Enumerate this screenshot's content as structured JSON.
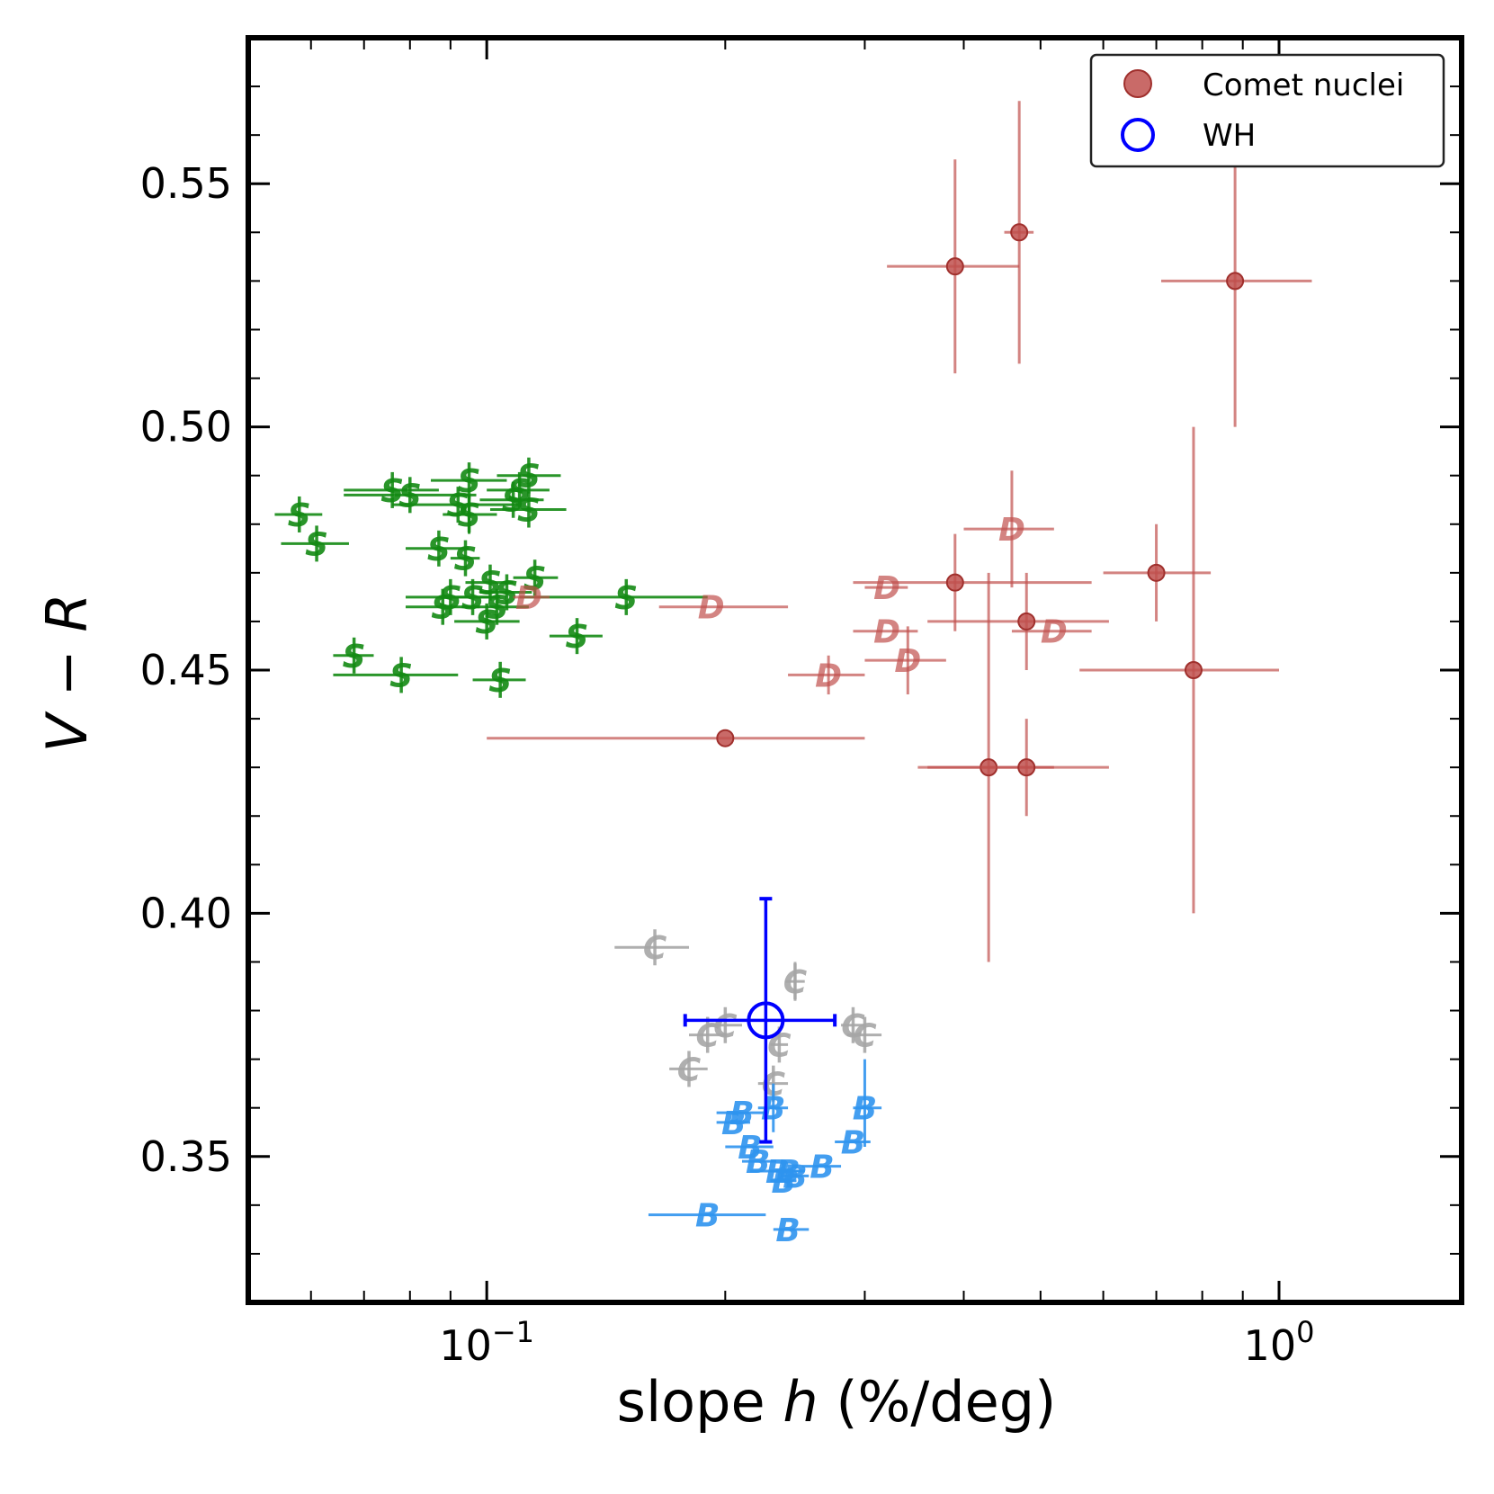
{
  "chart_data": {
    "type": "scatter",
    "xlabel_prefix": "slope ",
    "xlabel_var": "h",
    "xlabel_suffix": " (%/deg)",
    "ylabel_a": "V",
    "ylabel_sep": " − ",
    "ylabel_b": "R",
    "x_scale": "log",
    "xlim": [
      0.05,
      1.7
    ],
    "ylim": [
      0.32,
      0.58
    ],
    "x_tick_labels": [
      {
        "value": 0.1,
        "base": "10",
        "exp": "−1"
      },
      {
        "value": 1.0,
        "base": "10",
        "exp": "0"
      }
    ],
    "y_ticks": [
      0.35,
      0.4,
      0.45,
      0.5,
      0.55
    ],
    "y_tick_labels": [
      "0.35",
      "0.40",
      "0.45",
      "0.50",
      "0.55"
    ],
    "grid": false,
    "legend_position": "top-right",
    "legend": [
      {
        "label": "Comet nuclei",
        "marker": "filled-circle",
        "color": "#c0504d"
      },
      {
        "label": "WH",
        "marker": "open-circle",
        "color": "#0000ff"
      }
    ],
    "series": [
      {
        "name": "Comet nuclei",
        "marker": "filled-circle",
        "color": "#c0504d",
        "points": [
          {
            "x": 0.39,
            "y": 0.533,
            "xerr": [
              0.32,
              0.47
            ],
            "yerr": [
              0.511,
              0.555
            ]
          },
          {
            "x": 0.47,
            "y": 0.54,
            "xerr": [
              0.45,
              0.49
            ],
            "yerr": [
              0.513,
              0.567
            ]
          },
          {
            "x": 0.88,
            "y": 0.53,
            "xerr": [
              0.71,
              1.1
            ],
            "yerr": [
              0.5,
              0.56
            ]
          },
          {
            "x": 0.39,
            "y": 0.468,
            "xerr": [
              0.29,
              0.58
            ],
            "yerr": [
              0.458,
              0.478
            ]
          },
          {
            "x": 0.7,
            "y": 0.47,
            "xerr": [
              0.6,
              0.82
            ],
            "yerr": [
              0.46,
              0.48
            ]
          },
          {
            "x": 0.48,
            "y": 0.46,
            "xerr": [
              0.36,
              0.61
            ],
            "yerr": [
              0.45,
              0.47
            ]
          },
          {
            "x": 0.78,
            "y": 0.45,
            "xerr": [
              0.56,
              1.0
            ],
            "yerr": [
              0.4,
              0.5
            ]
          },
          {
            "x": 0.2,
            "y": 0.436,
            "xerr": [
              0.1,
              0.3
            ],
            "yerr": [
              0.436,
              0.436
            ]
          },
          {
            "x": 0.43,
            "y": 0.43,
            "xerr": [
              0.35,
              0.52
            ],
            "yerr": [
              0.39,
              0.47
            ]
          },
          {
            "x": 0.48,
            "y": 0.43,
            "xerr": [
              0.36,
              0.61
            ],
            "yerr": [
              0.42,
              0.44
            ]
          }
        ]
      },
      {
        "name": "WH",
        "marker": "open-circle",
        "color": "#0000ff",
        "points": [
          {
            "x": 0.225,
            "y": 0.378,
            "xerr": [
              0.178,
              0.275
            ],
            "yerr": [
              0.353,
              0.403
            ]
          }
        ]
      },
      {
        "marker": "letter",
        "letter": "S",
        "color": "#138a13",
        "points": [
          {
            "x": 0.058,
            "y": 0.482,
            "xerr": [
              0.054,
              0.062
            ],
            "yerr": [
              0.482,
              0.482
            ]
          },
          {
            "x": 0.061,
            "y": 0.476,
            "xerr": [
              0.055,
              0.067
            ],
            "yerr": [
              0.476,
              0.476
            ]
          },
          {
            "x": 0.076,
            "y": 0.487,
            "xerr": [
              0.066,
              0.087
            ],
            "yerr": [
              0.487,
              0.487
            ]
          },
          {
            "x": 0.08,
            "y": 0.486,
            "xerr": [
              0.066,
              0.097
            ],
            "yerr": [
              0.486,
              0.486
            ]
          },
          {
            "x": 0.095,
            "y": 0.489,
            "xerr": [
              0.085,
              0.106
            ],
            "yerr": [
              0.489,
              0.489
            ]
          },
          {
            "x": 0.092,
            "y": 0.484,
            "xerr": [
              0.076,
              0.11
            ],
            "yerr": [
              0.484,
              0.484
            ]
          },
          {
            "x": 0.113,
            "y": 0.49,
            "xerr": [
              0.103,
              0.124
            ],
            "yerr": [
              0.49,
              0.49
            ]
          },
          {
            "x": 0.11,
            "y": 0.487,
            "xerr": [
              0.1,
              0.12
            ],
            "yerr": [
              0.487,
              0.487
            ]
          },
          {
            "x": 0.108,
            "y": 0.485,
            "xerr": [
              0.098,
              0.118
            ],
            "yerr": [
              0.485,
              0.485
            ]
          },
          {
            "x": 0.113,
            "y": 0.483,
            "xerr": [
              0.101,
              0.126
            ],
            "yerr": [
              0.483,
              0.483
            ]
          },
          {
            "x": 0.095,
            "y": 0.482,
            "xerr": [
              0.088,
              0.103
            ],
            "yerr": [
              0.478,
              0.486
            ]
          },
          {
            "x": 0.087,
            "y": 0.475,
            "xerr": [
              0.079,
              0.095
            ],
            "yerr": [
              0.475,
              0.475
            ]
          },
          {
            "x": 0.094,
            "y": 0.473,
            "xerr": [
              0.09,
              0.098
            ],
            "yerr": [
              0.473,
              0.473
            ]
          },
          {
            "x": 0.101,
            "y": 0.468,
            "xerr": [
              0.094,
              0.108
            ],
            "yerr": [
              0.468,
              0.468
            ]
          },
          {
            "x": 0.106,
            "y": 0.466,
            "xerr": [
              0.098,
              0.114
            ],
            "yerr": [
              0.466,
              0.466
            ]
          },
          {
            "x": 0.115,
            "y": 0.469,
            "xerr": [
              0.108,
              0.123
            ],
            "yerr": [
              0.469,
              0.469
            ]
          },
          {
            "x": 0.09,
            "y": 0.465,
            "xerr": [
              0.079,
              0.102
            ],
            "yerr": [
              0.465,
              0.465
            ]
          },
          {
            "x": 0.096,
            "y": 0.465,
            "xerr": [
              0.088,
              0.104
            ],
            "yerr": [
              0.465,
              0.465
            ]
          },
          {
            "x": 0.088,
            "y": 0.463,
            "xerr": [
              0.079,
              0.098
            ],
            "yerr": [
              0.463,
              0.463
            ]
          },
          {
            "x": 0.103,
            "y": 0.463,
            "xerr": [
              0.093,
              0.113
            ],
            "yerr": [
              0.463,
              0.463
            ]
          },
          {
            "x": 0.1,
            "y": 0.46,
            "xerr": [
              0.091,
              0.11
            ],
            "yerr": [
              0.46,
              0.46
            ]
          },
          {
            "x": 0.15,
            "y": 0.465,
            "xerr": [
              0.11,
              0.19
            ],
            "yerr": [
              0.465,
              0.465
            ]
          },
          {
            "x": 0.13,
            "y": 0.457,
            "xerr": [
              0.12,
              0.14
            ],
            "yerr": [
              0.457,
              0.457
            ]
          },
          {
            "x": 0.068,
            "y": 0.453,
            "xerr": [
              0.064,
              0.072
            ],
            "yerr": [
              0.453,
              0.453
            ]
          },
          {
            "x": 0.078,
            "y": 0.449,
            "xerr": [
              0.064,
              0.092
            ],
            "yerr": [
              0.449,
              0.449
            ]
          },
          {
            "x": 0.104,
            "y": 0.448,
            "xerr": [
              0.096,
              0.112
            ],
            "yerr": [
              0.448,
              0.448
            ]
          }
        ]
      },
      {
        "marker": "letter",
        "letter": "D",
        "color": "#c0504d",
        "points": [
          {
            "x": 0.113,
            "y": 0.465,
            "xerr": [
              0.108,
              0.12
            ],
            "yerr": [
              0.465,
              0.465
            ]
          },
          {
            "x": 0.192,
            "y": 0.463,
            "xerr": [
              0.165,
              0.24
            ],
            "yerr": [
              0.463,
              0.463
            ]
          },
          {
            "x": 0.32,
            "y": 0.467,
            "xerr": [
              0.3,
              0.34
            ],
            "yerr": [
              0.467,
              0.467
            ]
          },
          {
            "x": 0.46,
            "y": 0.479,
            "xerr": [
              0.4,
              0.52
            ],
            "yerr": [
              0.467,
              0.491
            ]
          },
          {
            "x": 0.32,
            "y": 0.458,
            "xerr": [
              0.29,
              0.35
            ],
            "yerr": [
              0.458,
              0.458
            ]
          },
          {
            "x": 0.52,
            "y": 0.458,
            "xerr": [
              0.46,
              0.58
            ],
            "yerr": [
              0.458,
              0.458
            ]
          },
          {
            "x": 0.34,
            "y": 0.452,
            "xerr": [
              0.3,
              0.38
            ],
            "yerr": [
              0.445,
              0.459
            ]
          },
          {
            "x": 0.27,
            "y": 0.449,
            "xerr": [
              0.24,
              0.3
            ],
            "yerr": [
              0.445,
              0.453
            ]
          }
        ]
      },
      {
        "marker": "letter",
        "letter": "C",
        "color": "#a6a6a6",
        "points": [
          {
            "x": 0.163,
            "y": 0.393,
            "xerr": [
              0.145,
              0.18
            ],
            "yerr": [
              0.393,
              0.393
            ]
          },
          {
            "x": 0.245,
            "y": 0.386,
            "xerr": [
              0.238,
              0.252
            ],
            "yerr": [
              0.382,
              0.39
            ]
          },
          {
            "x": 0.2,
            "y": 0.377,
            "xerr": [
              0.19,
              0.21
            ],
            "yerr": [
              0.377,
              0.377
            ]
          },
          {
            "x": 0.19,
            "y": 0.375,
            "xerr": [
              0.18,
              0.2
            ],
            "yerr": [
              0.375,
              0.375
            ]
          },
          {
            "x": 0.29,
            "y": 0.377,
            "xerr": [
              0.28,
              0.3
            ],
            "yerr": [
              0.377,
              0.377
            ]
          },
          {
            "x": 0.3,
            "y": 0.375,
            "xerr": [
              0.285,
              0.315
            ],
            "yerr": [
              0.375,
              0.375
            ]
          },
          {
            "x": 0.234,
            "y": 0.373,
            "xerr": [
              0.228,
              0.24
            ],
            "yerr": [
              0.373,
              0.373
            ]
          },
          {
            "x": 0.18,
            "y": 0.368,
            "xerr": [
              0.17,
              0.19
            ],
            "yerr": [
              0.368,
              0.368
            ]
          },
          {
            "x": 0.23,
            "y": 0.365,
            "xerr": [
              0.22,
              0.24
            ],
            "yerr": [
              0.365,
              0.365
            ]
          }
        ]
      },
      {
        "marker": "letter",
        "letter": "B",
        "color": "#2f93ee",
        "points": [
          {
            "x": 0.23,
            "y": 0.36,
            "xerr": [
              0.22,
              0.24
            ],
            "yerr": [
              0.355,
              0.365
            ]
          },
          {
            "x": 0.21,
            "y": 0.359,
            "xerr": [
              0.195,
              0.225
            ],
            "yerr": [
              0.359,
              0.359
            ]
          },
          {
            "x": 0.205,
            "y": 0.357,
            "xerr": [
              0.195,
              0.215
            ],
            "yerr": [
              0.357,
              0.357
            ]
          },
          {
            "x": 0.3,
            "y": 0.36,
            "xerr": [
              0.29,
              0.315
            ],
            "yerr": [
              0.352,
              0.37
            ]
          },
          {
            "x": 0.29,
            "y": 0.353,
            "xerr": [
              0.275,
              0.305
            ],
            "yerr": [
              0.353,
              0.353
            ]
          },
          {
            "x": 0.215,
            "y": 0.352,
            "xerr": [
              0.2,
              0.23
            ],
            "yerr": [
              0.352,
              0.352
            ]
          },
          {
            "x": 0.22,
            "y": 0.349,
            "xerr": [
              0.21,
              0.232
            ],
            "yerr": [
              0.349,
              0.349
            ]
          },
          {
            "x": 0.265,
            "y": 0.348,
            "xerr": [
              0.25,
              0.28
            ],
            "yerr": [
              0.348,
              0.348
            ]
          },
          {
            "x": 0.233,
            "y": 0.347,
            "xerr": [
              0.215,
              0.25
            ],
            "yerr": [
              0.347,
              0.347
            ]
          },
          {
            "x": 0.24,
            "y": 0.347,
            "xerr": [
              0.228,
              0.252
            ],
            "yerr": [
              0.347,
              0.347
            ]
          },
          {
            "x": 0.245,
            "y": 0.346,
            "xerr": [
              0.235,
              0.255
            ],
            "yerr": [
              0.346,
              0.346
            ]
          },
          {
            "x": 0.237,
            "y": 0.345,
            "xerr": [
              0.228,
              0.246
            ],
            "yerr": [
              0.345,
              0.345
            ]
          },
          {
            "x": 0.19,
            "y": 0.338,
            "xerr": [
              0.16,
              0.225
            ],
            "yerr": [
              0.338,
              0.338
            ]
          },
          {
            "x": 0.24,
            "y": 0.335,
            "xerr": [
              0.23,
              0.255
            ],
            "yerr": [
              0.335,
              0.335
            ]
          }
        ]
      }
    ]
  }
}
